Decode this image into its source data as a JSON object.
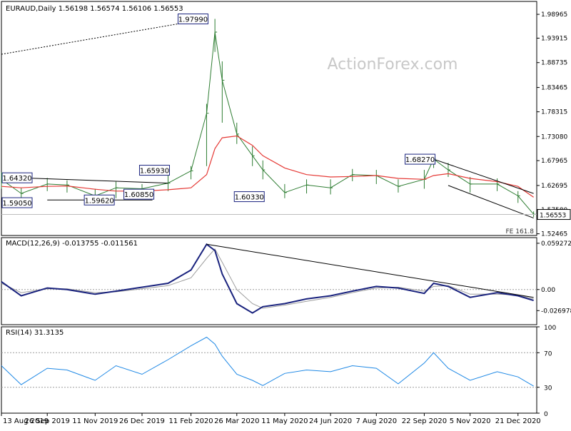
{
  "watermark": "ActionForex.com",
  "colors": {
    "price": "#2e7d32",
    "ma": "#e53935",
    "macd": "#1a237e",
    "signal": "#9e9e9e",
    "rsi": "#1e88e5",
    "trend": "#000000",
    "label_border": "#1a237e"
  },
  "chart_data": [
    {
      "id": "price",
      "type": "ohlc",
      "title": "EURAUD,Daily  1.56198 1.56574 1.56106 1.56553",
      "ylim": [
        1.521,
        2.017
      ],
      "ytick_values": [
        1.98965,
        1.93915,
        1.88735,
        1.83465,
        1.78315,
        1.7308,
        1.67965,
        1.62695,
        1.5758,
        1.52465
      ],
      "ytick_labels": [
        "1.98965",
        "1.93915",
        "1.88735",
        "1.83465",
        "1.78315",
        "1.73080",
        "1.67965",
        "1.62695",
        "1.57580",
        "1.52465"
      ],
      "last_price": 1.56553,
      "last_price_label": "1.56553",
      "x_dates": [
        "2019-08-13",
        "2019-09-01",
        "2019-09-26",
        "2019-10-15",
        "2019-11-11",
        "2019-12-01",
        "2019-12-26",
        "2020-01-20",
        "2020-02-11",
        "2020-02-26",
        "2020-03-05",
        "2020-03-12",
        "2020-03-26",
        "2020-04-10",
        "2020-04-20",
        "2020-05-11",
        "2020-06-01",
        "2020-06-24",
        "2020-07-15",
        "2020-08-07",
        "2020-08-28",
        "2020-09-22",
        "2020-10-01",
        "2020-10-15",
        "2020-11-05",
        "2020-12-01",
        "2020-12-21",
        "2021-01-05"
      ],
      "close": [
        1.64,
        1.61,
        1.63,
        1.628,
        1.605,
        1.622,
        1.62,
        1.632,
        1.658,
        1.78,
        1.952,
        1.85,
        1.736,
        1.69,
        1.66,
        1.612,
        1.628,
        1.622,
        1.65,
        1.648,
        1.625,
        1.64,
        1.683,
        1.66,
        1.63,
        1.63,
        1.605,
        1.566
      ],
      "high": [
        1.655,
        1.622,
        1.643,
        1.638,
        1.62,
        1.635,
        1.63,
        1.655,
        1.668,
        1.8,
        1.98,
        1.89,
        1.76,
        1.71,
        1.68,
        1.63,
        1.64,
        1.64,
        1.662,
        1.66,
        1.64,
        1.66,
        1.69,
        1.675,
        1.645,
        1.642,
        1.615,
        1.572
      ],
      "low": [
        1.62,
        1.59,
        1.615,
        1.612,
        1.598,
        1.6,
        1.608,
        1.615,
        1.64,
        1.668,
        1.91,
        1.76,
        1.715,
        1.668,
        1.64,
        1.6,
        1.61,
        1.608,
        1.636,
        1.63,
        1.612,
        1.62,
        1.664,
        1.645,
        1.612,
        1.615,
        1.59,
        1.56
      ],
      "ma": [
        1.625,
        1.622,
        1.625,
        1.626,
        1.619,
        1.615,
        1.615,
        1.618,
        1.622,
        1.65,
        1.705,
        1.728,
        1.732,
        1.712,
        1.69,
        1.664,
        1.65,
        1.645,
        1.646,
        1.648,
        1.642,
        1.64,
        1.648,
        1.652,
        1.642,
        1.635,
        1.625,
        1.602
      ],
      "annotations": [
        {
          "text": "1.97990",
          "date": "2020-02-26",
          "value": 1.9799,
          "place": "left"
        },
        {
          "text": "1.64320",
          "date": "2019-09-01",
          "value": 1.6432,
          "place": "left"
        },
        {
          "text": "1.65930",
          "date": "2020-01-20",
          "value": 1.6593,
          "place": "left"
        },
        {
          "text": "1.59050",
          "date": "2019-08-13",
          "value": 1.5905,
          "place": "left"
        },
        {
          "text": "1.59620",
          "date": "2019-11-28",
          "value": 1.5962,
          "place": "left"
        },
        {
          "text": "1.60850",
          "date": "2020-01-05",
          "value": 1.6085,
          "place": "left"
        },
        {
          "text": "1.60330",
          "date": "2020-04-20",
          "value": 1.6033,
          "place": "left"
        },
        {
          "text": "1.68270",
          "date": "2020-10-01",
          "value": 1.6827,
          "place": "left"
        }
      ],
      "trendlines": [
        {
          "from": [
            "2019-08-13",
            1.905
          ],
          "to": [
            "2020-02-26",
            1.9799
          ],
          "dashed": true
        },
        {
          "from": [
            "2019-09-01",
            1.6432
          ],
          "to": [
            "2020-01-20",
            1.632
          ],
          "dashed": false
        },
        {
          "from": [
            "2019-09-26",
            1.5962
          ],
          "to": [
            "2020-01-05",
            1.5962
          ],
          "dashed": false
        },
        {
          "from": [
            "2020-10-01",
            1.6827
          ],
          "to": [
            "2021-01-05",
            1.61
          ],
          "dashed": false
        },
        {
          "from": [
            "2020-10-15",
            1.627
          ],
          "to": [
            "2021-01-05",
            1.558
          ],
          "dashed": false
        }
      ],
      "fe_label": "FE 161.8",
      "fe_value": 1.5315
    },
    {
      "id": "macd",
      "type": "line",
      "title": "MACD(12,26,9) -0.013755 -0.011561",
      "ylim": [
        -0.045,
        0.0665
      ],
      "ytick_values": [
        0.059272,
        0.0,
        -0.026978
      ],
      "ytick_labels": [
        "0.059272",
        "0.00",
        "-0.026978"
      ],
      "zero_label": "0.00",
      "x_dates": [
        "2019-08-13",
        "2019-09-01",
        "2019-09-26",
        "2019-10-15",
        "2019-11-11",
        "2019-12-01",
        "2019-12-26",
        "2020-01-20",
        "2020-02-11",
        "2020-02-26",
        "2020-03-05",
        "2020-03-12",
        "2020-03-26",
        "2020-04-10",
        "2020-04-20",
        "2020-05-11",
        "2020-06-01",
        "2020-06-24",
        "2020-07-15",
        "2020-08-07",
        "2020-08-28",
        "2020-09-22",
        "2020-10-01",
        "2020-10-15",
        "2020-11-05",
        "2020-12-01",
        "2020-12-21",
        "2021-01-05"
      ],
      "macd": [
        0.01,
        -0.008,
        0.002,
        0.0,
        -0.006,
        -0.002,
        0.003,
        0.008,
        0.025,
        0.058,
        0.05,
        0.02,
        -0.018,
        -0.03,
        -0.022,
        -0.018,
        -0.012,
        -0.008,
        -0.002,
        0.004,
        0.002,
        -0.005,
        0.008,
        0.004,
        -0.01,
        -0.004,
        -0.008,
        -0.014
      ],
      "signal": [
        0.008,
        -0.004,
        0.001,
        0.001,
        -0.004,
        -0.003,
        0.001,
        0.005,
        0.015,
        0.04,
        0.052,
        0.035,
        0.0,
        -0.018,
        -0.024,
        -0.02,
        -0.015,
        -0.01,
        -0.004,
        0.002,
        0.003,
        -0.002,
        0.004,
        0.005,
        -0.006,
        -0.006,
        -0.007,
        -0.012
      ],
      "trendline": {
        "from": [
          "2020-02-26",
          0.058
        ],
        "to": [
          "2021-01-05",
          -0.01
        ]
      }
    },
    {
      "id": "rsi",
      "type": "line",
      "title": "RSI(14) 31.3135",
      "ylim": [
        0,
        100
      ],
      "ytick_values": [
        100,
        70,
        30,
        0
      ],
      "ytick_labels": [
        "100",
        "70",
        "30",
        "0"
      ],
      "levels": [
        70,
        30
      ],
      "x_dates": [
        "2019-08-13",
        "2019-09-01",
        "2019-09-26",
        "2019-10-15",
        "2019-11-11",
        "2019-12-01",
        "2019-12-26",
        "2020-01-20",
        "2020-02-11",
        "2020-02-26",
        "2020-03-05",
        "2020-03-12",
        "2020-03-26",
        "2020-04-10",
        "2020-04-20",
        "2020-05-11",
        "2020-06-01",
        "2020-06-24",
        "2020-07-15",
        "2020-08-07",
        "2020-08-28",
        "2020-09-22",
        "2020-10-01",
        "2020-10-15",
        "2020-11-05",
        "2020-12-01",
        "2020-12-21",
        "2021-01-05"
      ],
      "rsi": [
        55,
        33,
        52,
        50,
        38,
        55,
        45,
        62,
        78,
        88,
        80,
        66,
        45,
        38,
        32,
        46,
        50,
        48,
        55,
        52,
        34,
        58,
        70,
        52,
        38,
        48,
        42,
        31.3
      ]
    }
  ],
  "x_axis": {
    "tick_dates": [
      "2019-08-13",
      "2019-09-26",
      "2019-11-11",
      "2019-12-26",
      "2020-02-11",
      "2020-03-26",
      "2020-05-11",
      "2020-06-24",
      "2020-08-07",
      "2020-09-22",
      "2020-11-05",
      "2020-12-21"
    ],
    "tick_labels": [
      "13 Aug 2019",
      "26 Sep 2019",
      "11 Nov 2019",
      "26 Dec 2019",
      "11 Feb 2020",
      "26 Mar 2020",
      "11 May 2020",
      "24 Jun 2020",
      "7 Aug 2020",
      "22 Sep 2020",
      "5 Nov 2020",
      "21 Dec 2020"
    ],
    "range": [
      "2019-08-13",
      "2021-01-08"
    ]
  }
}
